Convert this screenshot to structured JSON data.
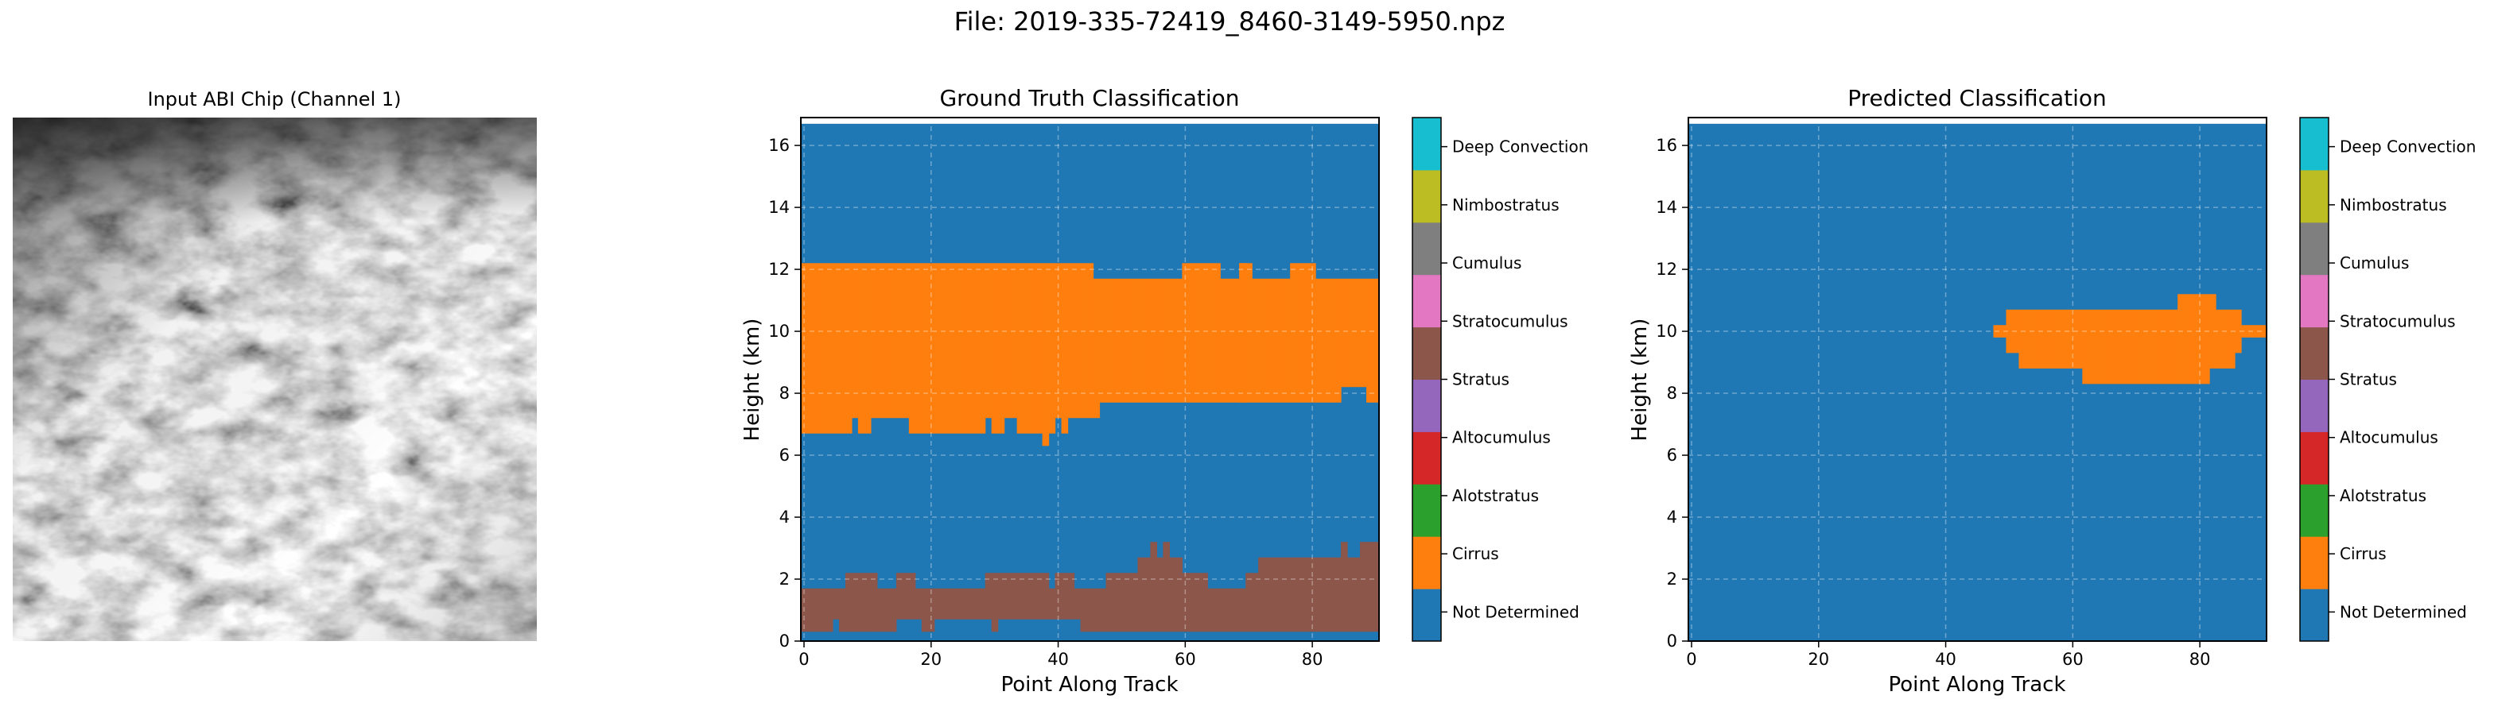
{
  "figure": {
    "title": "File: 2019-335-72419_8460-3149-5950.npz"
  },
  "input_panel": {
    "title": "Input ABI Chip (Channel 1)"
  },
  "colorbar_labels": [
    "Not Determined",
    "Cirrus",
    "Alotstratus",
    "Altocumulus",
    "Stratus",
    "Stratocumulus",
    "Cumulus",
    "Nimbostratus",
    "Deep Convection"
  ],
  "class_colors": [
    "#1f77b4",
    "#ff7f0e",
    "#2ca02c",
    "#d62728",
    "#9467bd",
    "#8c564b",
    "#e377c2",
    "#7f7f7f",
    "#bcbd22",
    "#17becf"
  ],
  "chart_data": [
    {
      "type": "heatmap",
      "title": "Ground Truth Classification",
      "xlabel": "Point Along Track",
      "ylabel": "Height (km)",
      "xlim": [
        -0.5,
        90.5
      ],
      "ylim": [
        0,
        16.9
      ],
      "xticks": [
        0,
        20,
        40,
        60,
        80
      ],
      "yticks": [
        0,
        2,
        4,
        6,
        8,
        10,
        12,
        14,
        16
      ],
      "grid": true,
      "background_class": "Not Determined",
      "layers": [
        {
          "class": "Cirrus",
          "x": [
            0,
            1,
            2,
            3,
            4,
            5,
            6,
            7,
            8,
            9,
            10,
            11,
            12,
            13,
            14,
            15,
            16,
            17,
            18,
            19,
            20,
            21,
            22,
            23,
            24,
            25,
            26,
            27,
            28,
            29,
            30,
            31,
            32,
            33,
            34,
            35,
            36,
            37,
            38,
            39,
            40,
            41,
            42,
            43,
            44,
            45,
            46,
            47,
            48,
            49,
            50,
            51,
            52,
            53,
            54,
            55,
            56,
            57,
            58,
            59,
            60,
            61,
            62,
            63,
            64,
            65,
            66,
            67,
            68,
            69,
            69,
            70,
            71,
            72,
            73,
            74,
            75,
            76,
            77,
            78,
            79,
            80,
            81,
            82,
            83,
            84,
            85,
            86,
            87,
            88,
            89,
            90
          ],
          "bottom": [
            6.7,
            6.7,
            6.7,
            6.7,
            6.7,
            6.7,
            6.7,
            6.7,
            7.2,
            6.7,
            6.7,
            7.2,
            7.2,
            7.2,
            7.2,
            7.2,
            7.2,
            6.7,
            6.7,
            6.7,
            6.7,
            6.7,
            6.7,
            6.7,
            6.7,
            6.7,
            6.7,
            6.7,
            6.7,
            7.2,
            6.7,
            6.7,
            7.2,
            7.2,
            6.7,
            6.7,
            6.7,
            6.7,
            6.3,
            6.7,
            7.2,
            6.7,
            7.2,
            7.2,
            7.2,
            7.2,
            7.2,
            7.7,
            7.7,
            7.7,
            7.7,
            7.7,
            7.7,
            7.7,
            7.7,
            7.7,
            7.7,
            7.7,
            7.7,
            7.7,
            7.7,
            7.7,
            7.7,
            7.7,
            7.7,
            7.7,
            7.7,
            7.7,
            7.7,
            7.7,
            7.7,
            7.7,
            7.7,
            7.7,
            7.7,
            7.7,
            7.7,
            7.7,
            7.7,
            7.7,
            7.7,
            7.7,
            7.7,
            7.7,
            7.7,
            7.7,
            8.2,
            8.2,
            8.2,
            8.2,
            7.7,
            7.7
          ],
          "top": [
            12.2,
            12.2,
            12.2,
            12.2,
            12.2,
            12.2,
            12.2,
            12.2,
            12.2,
            12.2,
            12.2,
            12.2,
            12.2,
            12.2,
            12.2,
            12.2,
            12.2,
            12.2,
            12.2,
            12.2,
            12.2,
            12.2,
            12.2,
            12.2,
            12.2,
            12.2,
            12.2,
            12.2,
            12.2,
            12.2,
            12.2,
            12.2,
            12.2,
            12.2,
            12.2,
            12.2,
            12.2,
            12.2,
            12.2,
            12.2,
            12.2,
            12.2,
            12.2,
            12.2,
            12.2,
            12.2,
            11.7,
            11.7,
            11.7,
            11.7,
            11.7,
            11.7,
            11.7,
            11.7,
            11.7,
            11.7,
            11.7,
            11.7,
            11.7,
            11.7,
            12.2,
            12.2,
            12.2,
            12.2,
            12.2,
            12.2,
            11.7,
            11.7,
            11.7,
            12.2,
            12.2,
            12.2,
            11.7,
            11.7,
            11.7,
            11.7,
            11.7,
            11.7,
            12.2,
            12.2,
            12.2,
            12.2,
            11.7,
            11.7,
            11.7,
            11.7,
            11.7,
            11.7,
            11.7,
            11.7,
            11.7,
            11.7
          ]
        },
        {
          "class": "Stratocumulus",
          "x": [
            0,
            1,
            2,
            3,
            4,
            5,
            6,
            7,
            8,
            9,
            10,
            11,
            12,
            13,
            14,
            15,
            16,
            17,
            18,
            19,
            20,
            21,
            22,
            23,
            24,
            25,
            26,
            27,
            28,
            29,
            30,
            31,
            32,
            33,
            34,
            35,
            36,
            37,
            38,
            39,
            40,
            41,
            42,
            43,
            44,
            45,
            46,
            47,
            48,
            49,
            50,
            51,
            52,
            53,
            54,
            55,
            56,
            57,
            58,
            59,
            60,
            61,
            62,
            63,
            64,
            65,
            66,
            67,
            68,
            69,
            70,
            71,
            72,
            73,
            74,
            75,
            76,
            77,
            78,
            79,
            80,
            81,
            82,
            83,
            84,
            85,
            86,
            87,
            88,
            89,
            90
          ],
          "bottom": [
            0.3,
            0.3,
            0.3,
            0.3,
            0.3,
            0.7,
            0.3,
            0.3,
            0.3,
            0.3,
            0.3,
            0.3,
            0.3,
            0.3,
            0.3,
            0.7,
            0.7,
            0.7,
            0.7,
            0.3,
            0.3,
            0.7,
            0.7,
            0.7,
            0.7,
            0.7,
            0.7,
            0.7,
            0.7,
            0.7,
            0.3,
            0.7,
            0.7,
            0.7,
            0.7,
            0.7,
            0.7,
            0.7,
            0.7,
            0.7,
            0.7,
            0.7,
            0.7,
            0.7,
            0.3,
            0.3,
            0.3,
            0.3,
            0.3,
            0.3,
            0.3,
            0.3,
            0.3,
            0.3,
            0.3,
            0.3,
            0.3,
            0.3,
            0.3,
            0.3,
            0.3,
            0.3,
            0.3,
            0.3,
            0.3,
            0.3,
            0.3,
            0.3,
            0.3,
            0.3,
            0.3,
            0.3,
            0.3,
            0.3,
            0.3,
            0.3,
            0.3,
            0.3,
            0.3,
            0.3,
            0.3,
            0.3,
            0.3,
            0.3,
            0.3,
            0.3,
            0.3,
            0.3,
            0.3,
            0.3,
            0.3
          ],
          "top": [
            1.7,
            1.7,
            1.7,
            1.7,
            1.7,
            1.7,
            1.7,
            2.2,
            2.2,
            2.2,
            2.2,
            2.2,
            1.7,
            1.7,
            1.7,
            2.2,
            2.2,
            2.2,
            1.7,
            1.7,
            1.7,
            1.7,
            1.7,
            1.7,
            1.7,
            1.7,
            1.7,
            1.7,
            1.7,
            2.2,
            2.2,
            2.2,
            2.2,
            2.2,
            2.2,
            2.2,
            2.2,
            2.2,
            2.2,
            1.7,
            2.2,
            2.2,
            2.2,
            1.7,
            1.7,
            1.7,
            1.7,
            1.7,
            2.2,
            2.2,
            2.2,
            2.2,
            2.2,
            2.7,
            2.7,
            3.2,
            2.7,
            3.2,
            2.7,
            2.7,
            2.2,
            2.2,
            2.2,
            2.2,
            1.7,
            1.7,
            1.7,
            1.7,
            1.7,
            1.7,
            2.2,
            2.2,
            2.7,
            2.7,
            2.7,
            2.7,
            2.7,
            2.7,
            2.7,
            2.7,
            2.7,
            2.7,
            2.7,
            2.7,
            2.7,
            3.2,
            2.7,
            2.7,
            3.2,
            3.2,
            3.2
          ]
        }
      ]
    },
    {
      "type": "heatmap",
      "title": "Predicted Classification",
      "xlabel": "Point Along Track",
      "ylabel": "Height (km)",
      "xlim": [
        -0.5,
        90.5
      ],
      "ylim": [
        0,
        16.9
      ],
      "xticks": [
        0,
        20,
        40,
        60,
        80
      ],
      "yticks": [
        0,
        2,
        4,
        6,
        8,
        10,
        12,
        14,
        16
      ],
      "grid": true,
      "background_class": "Not Determined",
      "layers": [
        {
          "class": "Cirrus",
          "x": [
            48,
            49,
            50,
            51,
            52,
            53,
            54,
            55,
            56,
            57,
            58,
            59,
            60,
            61,
            62,
            63,
            64,
            65,
            66,
            67,
            68,
            69,
            70,
            71,
            72,
            73,
            74,
            75,
            76,
            77,
            78,
            79,
            80,
            81,
            82,
            83,
            84,
            85,
            86,
            87,
            88,
            89,
            90
          ],
          "bottom": [
            9.8,
            9.8,
            9.3,
            9.3,
            8.8,
            8.8,
            8.8,
            8.8,
            8.8,
            8.8,
            8.8,
            8.8,
            8.8,
            8.8,
            8.3,
            8.3,
            8.3,
            8.3,
            8.3,
            8.3,
            8.3,
            8.3,
            8.3,
            8.3,
            8.3,
            8.3,
            8.3,
            8.3,
            8.3,
            8.3,
            8.3,
            8.3,
            8.3,
            8.3,
            8.8,
            8.8,
            8.8,
            8.8,
            9.3,
            9.8,
            9.8,
            9.8,
            9.8
          ],
          "top": [
            10.2,
            10.2,
            10.7,
            10.7,
            10.7,
            10.7,
            10.7,
            10.7,
            10.7,
            10.7,
            10.7,
            10.7,
            10.7,
            10.7,
            10.7,
            10.7,
            10.7,
            10.7,
            10.7,
            10.7,
            10.7,
            10.7,
            10.7,
            10.7,
            10.7,
            10.7,
            10.7,
            10.7,
            10.7,
            11.2,
            11.2,
            11.2,
            11.2,
            11.2,
            11.2,
            10.7,
            10.7,
            10.7,
            10.7,
            10.2,
            10.2,
            10.2,
            10.2
          ]
        }
      ]
    }
  ]
}
